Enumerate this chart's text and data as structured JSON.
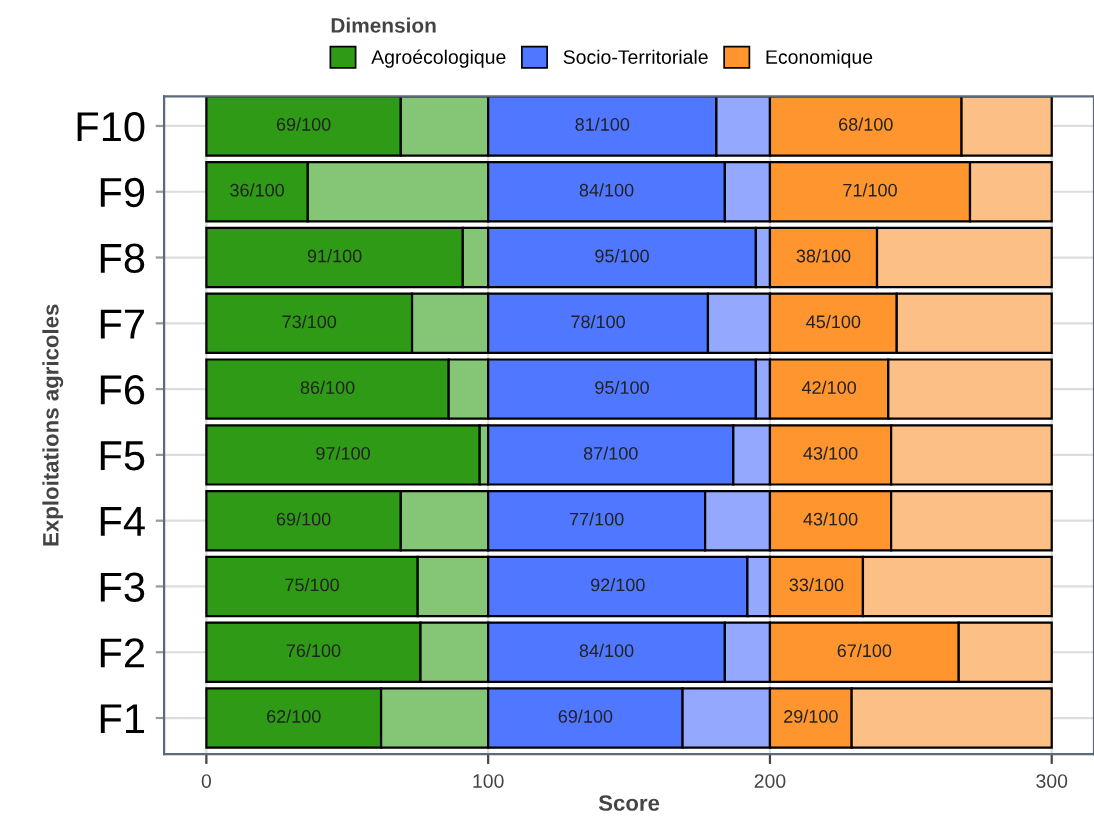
{
  "chart_data": {
    "type": "bar",
    "orientation": "horizontal",
    "stacked": true,
    "xlabel": "Score",
    "ylabel": "Exploitations agricoles",
    "legend_title": "Dimension",
    "legend": "top",
    "categories": [
      "F10",
      "F9",
      "F8",
      "F7",
      "F6",
      "F5",
      "F4",
      "F3",
      "F2",
      "F1"
    ],
    "series": [
      {
        "name": "Agroécologique",
        "color": "#2e9a16",
        "values": [
          69,
          36,
          91,
          73,
          86,
          97,
          69,
          75,
          76,
          62
        ],
        "value_labels": [
          "69/100",
          "36/100",
          "91/100",
          "73/100",
          "86/100",
          "97/100",
          "69/100",
          "75/100",
          "76/100",
          "62/100"
        ]
      },
      {
        "color": "#84c576",
        "values": [
          31,
          64,
          9,
          27,
          14,
          3,
          31,
          25,
          24,
          38
        ]
      },
      {
        "name": "Socio-Territoriale",
        "color": "#5077ff",
        "values": [
          81,
          84,
          95,
          78,
          95,
          87,
          77,
          92,
          84,
          69
        ],
        "value_labels": [
          "81/100",
          "84/100",
          "95/100",
          "78/100",
          "95/100",
          "87/100",
          "77/100",
          "92/100",
          "84/100",
          "69/100"
        ]
      },
      {
        "color": "#94a9fd",
        "values": [
          19,
          16,
          5,
          22,
          5,
          13,
          23,
          8,
          16,
          31
        ]
      },
      {
        "name": "Economique",
        "color": "#fe952e",
        "values": [
          68,
          71,
          38,
          45,
          42,
          43,
          43,
          33,
          67,
          29
        ],
        "value_labels": [
          "68/100",
          "71/100",
          "38/100",
          "45/100",
          "42/100",
          "43/100",
          "43/100",
          "33/100",
          "67/100",
          "29/100"
        ]
      },
      {
        "color": "#fcbf85",
        "values": [
          32,
          29,
          62,
          55,
          58,
          57,
          57,
          67,
          33,
          71
        ]
      }
    ],
    "xlim": [
      -15,
      315
    ],
    "xticks": [
      0,
      100,
      200,
      300
    ],
    "grid": true
  }
}
